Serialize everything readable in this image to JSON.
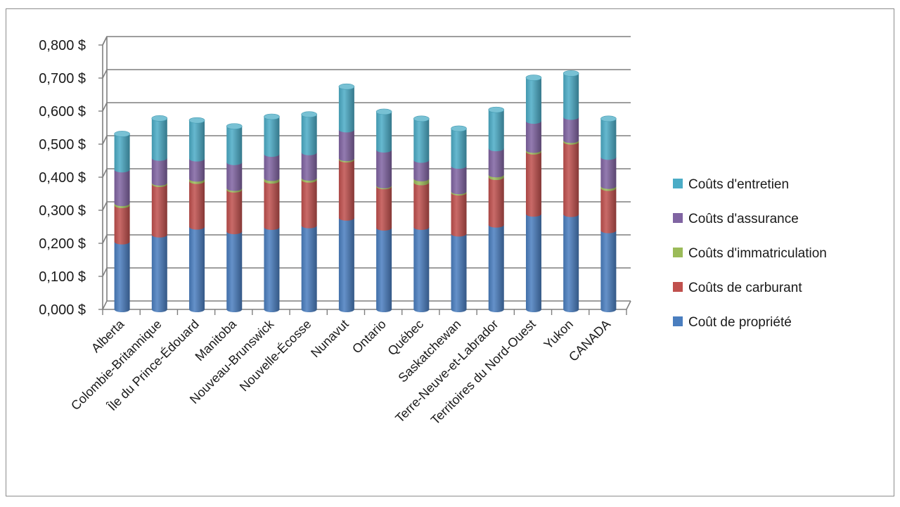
{
  "chart_data": {
    "type": "bar",
    "stacked": true,
    "style": "3d-cylinder",
    "categories": [
      "Alberta",
      "Colombie-Britannique",
      "Île du Prince-Édouard",
      "Manitoba",
      "Nouveau-Brunswick",
      "Nouvelle-Écosse",
      "Nunavut",
      "Ontario",
      "Québec",
      "Saskatchewan",
      "Terre-Neuve-et-Labrador",
      "Territoires du Nord-Ouest",
      "Yukon",
      "CANADA"
    ],
    "series": [
      {
        "name": "Coût de propriété",
        "color": "#4a7ebf",
        "values": [
          0.205,
          0.226,
          0.25,
          0.236,
          0.249,
          0.254,
          0.277,
          0.247,
          0.249,
          0.229,
          0.256,
          0.289,
          0.288,
          0.239
        ]
      },
      {
        "name": "Coûts de carburant",
        "color": "#c0504d",
        "values": [
          0.11,
          0.153,
          0.138,
          0.126,
          0.14,
          0.138,
          0.176,
          0.125,
          0.135,
          0.124,
          0.144,
          0.188,
          0.219,
          0.128
        ]
      },
      {
        "name": "Coûts d'immatriculation",
        "color": "#9bbb59",
        "values": [
          0.006,
          0.004,
          0.007,
          0.005,
          0.008,
          0.006,
          0.004,
          0.003,
          0.012,
          0.004,
          0.008,
          0.005,
          0.005,
          0.006
        ]
      },
      {
        "name": "Coûts d'assurance",
        "color": "#8064a2",
        "values": [
          0.102,
          0.075,
          0.061,
          0.078,
          0.073,
          0.077,
          0.087,
          0.108,
          0.056,
          0.077,
          0.079,
          0.088,
          0.07,
          0.088
        ]
      },
      {
        "name": "Coûts d'entretien",
        "color": "#4bacc6",
        "values": [
          0.108,
          0.12,
          0.116,
          0.109,
          0.113,
          0.115,
          0.13,
          0.115,
          0.125,
          0.113,
          0.117,
          0.131,
          0.132,
          0.116
        ]
      }
    ],
    "y_ticks": [
      "0,000 $",
      "0,100 $",
      "0,200 $",
      "0,300 $",
      "0,400 $",
      "0,500 $",
      "0,600 $",
      "0,700 $",
      "0,800 $"
    ],
    "ylim": [
      0,
      0.8
    ],
    "title": "",
    "xlabel": "",
    "ylabel": "",
    "grid": true,
    "legend_position": "right",
    "legend_order": [
      "Coûts d'entretien",
      "Coûts d'assurance",
      "Coûts d'immatriculation",
      "Coûts de carburant",
      "Coût de propriété"
    ]
  }
}
